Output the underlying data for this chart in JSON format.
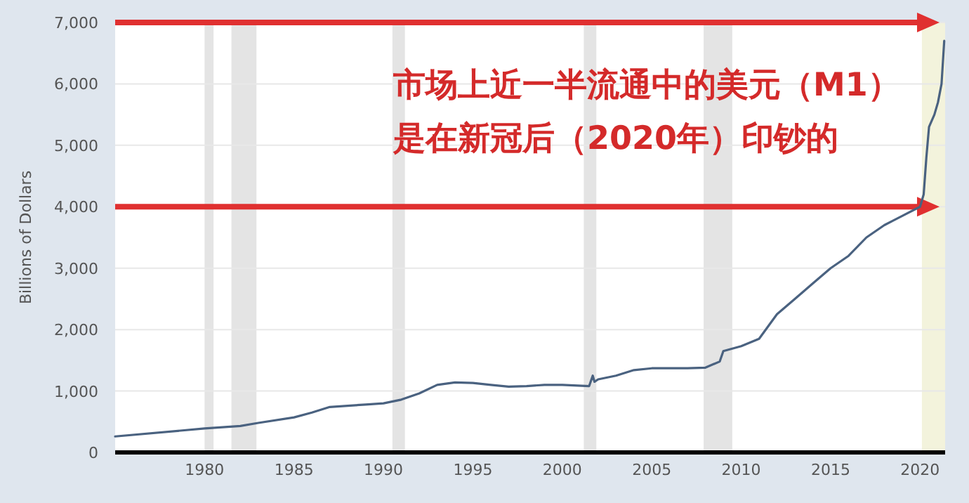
{
  "chart_data": {
    "type": "line",
    "ylabel": "Billions of Dollars",
    "annotations": [
      "市场上近一半流通中的美元（M1）",
      "是在新冠后（2020年）印钞的"
    ],
    "xlim": [
      1975,
      2021.4
    ],
    "xticks": [
      1980,
      1985,
      1990,
      1995,
      2000,
      2005,
      2010,
      2015,
      2020
    ],
    "ylim": [
      0,
      7000
    ],
    "yticks": [
      0,
      {
        "value": 1000,
        "label": "1,000"
      },
      {
        "value": 2000,
        "label": "2,000"
      },
      {
        "value": 3000,
        "label": "3,000"
      },
      {
        "value": 4000,
        "label": "4,000"
      },
      {
        "value": 5000,
        "label": "5,000"
      },
      {
        "value": 6000,
        "label": "6,000"
      },
      {
        "value": 7000,
        "label": "7,000"
      }
    ],
    "grid": "y",
    "series": [
      {
        "color": "#4a6280",
        "x": [
          1975,
          1980,
          1982,
          1983,
          1985,
          1986,
          1987,
          1988,
          1989,
          1990,
          1991,
          1992,
          1993,
          1994,
          1995,
          1996,
          1997,
          1998,
          1999,
          2000,
          2001.5,
          2001.7,
          2001.8,
          2002,
          2003,
          2004,
          2005,
          2006,
          2007,
          2008,
          2008.8,
          2009,
          2010,
          2011,
          2011.5,
          2012,
          2013,
          2014,
          2015,
          2016,
          2017,
          2018,
          2019,
          2020,
          2020.2,
          2020.35,
          2020.5,
          2020.8,
          2021,
          2021.2,
          2021.35
        ],
        "values": [
          260,
          390,
          430,
          480,
          570,
          650,
          740,
          760,
          780,
          800,
          860,
          960,
          1100,
          1140,
          1130,
          1100,
          1070,
          1080,
          1100,
          1100,
          1080,
          1250,
          1150,
          1190,
          1250,
          1340,
          1370,
          1370,
          1370,
          1380,
          1480,
          1650,
          1730,
          1850,
          2050,
          2250,
          2500,
          2750,
          3000,
          3200,
          3500,
          3700,
          3850,
          4000,
          4200,
          4800,
          5300,
          5500,
          5700,
          6000,
          6700
        ]
      }
    ],
    "bands": [
      {
        "axis": "x",
        "from": 1980,
        "to": 1980.5,
        "color": "#e4e4e4"
      },
      {
        "axis": "x",
        "from": 1981.5,
        "to": 1982.9,
        "color": "#e4e4e4"
      },
      {
        "axis": "x",
        "from": 1990.5,
        "to": 1991.2,
        "color": "#e4e4e4"
      },
      {
        "axis": "x",
        "from": 2001.2,
        "to": 2001.9,
        "color": "#e4e4e4"
      },
      {
        "axis": "x",
        "from": 2007.9,
        "to": 2009.5,
        "color": "#e4e4e4"
      },
      {
        "axis": "x",
        "from": 2020.1,
        "to": 2021.4,
        "color": "#f3f3dc"
      }
    ],
    "ref_lines": [
      {
        "axis": "y",
        "value": 7000,
        "color": "#e03030"
      },
      {
        "axis": "y",
        "value": 4000,
        "color": "#e03030"
      }
    ]
  }
}
